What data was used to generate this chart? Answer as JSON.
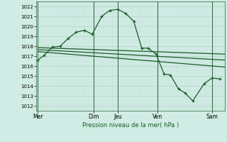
{
  "bg_color": "#d0ece4",
  "grid_major_color": "#b8d8cc",
  "grid_minor_color": "#c4e0d8",
  "line_color": "#1a5c28",
  "ylim": [
    1011.5,
    1022.5
  ],
  "xlim": [
    0,
    11.8
  ],
  "xlabel": "Pression niveau de la mer( hPa )",
  "day_labels": [
    "Mer",
    "Dim",
    "Jeu",
    "Ven",
    "Sam"
  ],
  "day_positions": [
    0.1,
    3.6,
    5.1,
    7.6,
    11.0
  ],
  "vline_positions": [
    0.1,
    3.6,
    5.1,
    7.6,
    11.0
  ],
  "main_line_x": [
    0.1,
    0.5,
    1.0,
    1.5,
    2.0,
    2.5,
    3.0,
    3.5,
    4.1,
    4.6,
    5.1,
    5.6,
    6.1,
    6.6,
    7.0,
    7.5,
    8.0,
    8.4,
    8.9,
    9.3,
    9.8,
    10.5,
    11.0,
    11.5
  ],
  "main_line_y": [
    1016.6,
    1017.1,
    1017.9,
    1018.0,
    1018.8,
    1019.4,
    1019.6,
    1019.2,
    1021.0,
    1021.6,
    1021.7,
    1021.3,
    1020.5,
    1017.8,
    1017.8,
    1017.2,
    1015.2,
    1015.1,
    1013.7,
    1013.3,
    1012.5,
    1014.2,
    1014.8,
    1014.7
  ],
  "trend_line1_x": [
    0.1,
    11.8
  ],
  "trend_line1_y": [
    1017.85,
    1017.2
  ],
  "trend_line2_x": [
    0.1,
    11.8
  ],
  "trend_line2_y": [
    1017.65,
    1016.6
  ],
  "trend_line3_x": [
    0.1,
    11.8
  ],
  "trend_line3_y": [
    1017.45,
    1015.9
  ],
  "figsize": [
    3.2,
    2.0
  ],
  "dpi": 100
}
